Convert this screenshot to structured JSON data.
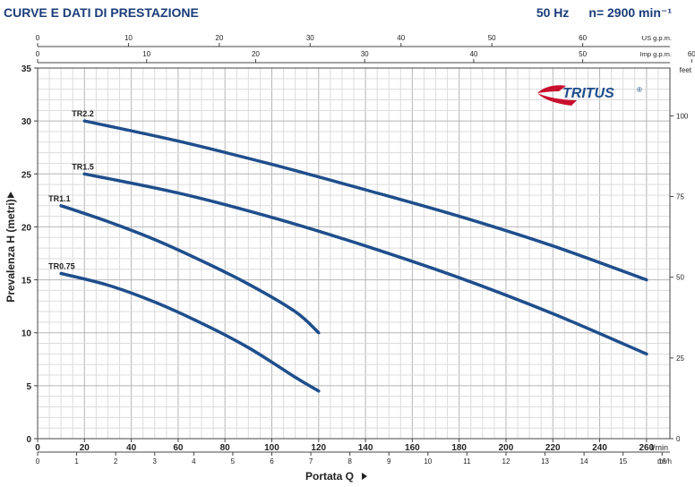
{
  "header": {
    "title": "CURVE E DATI DI PRESTAZIONE",
    "frequency": "50 Hz",
    "speed": "n= 2900 min⁻¹"
  },
  "logo": {
    "text": "TRITUS",
    "mark": "®",
    "color": "#c8102e"
  },
  "colors": {
    "curve": "#1f4e8c",
    "grid_major": "#b5b5b5",
    "grid_minor": "#dcdcdc",
    "text": "#222222"
  },
  "axes": {
    "top_us": {
      "unit": "US g.p.m.",
      "ticks": [
        "0",
        "10",
        "20",
        "30",
        "40",
        "50",
        "60"
      ],
      "range": [
        0,
        69.6
      ]
    },
    "top_imp": {
      "unit": "Imp g.p.m.",
      "ticks": [
        "0",
        "10",
        "20",
        "30",
        "40",
        "50",
        "60"
      ],
      "range": [
        0,
        58
      ]
    },
    "bottom_lmin": {
      "unit": "l/min",
      "ticks": [
        "0",
        "20",
        "40",
        "60",
        "80",
        "100",
        "120",
        "140",
        "160",
        "180",
        "200",
        "220",
        "240",
        "260"
      ],
      "range": [
        0,
        270
      ]
    },
    "bottom_m3h": {
      "unit": "m³/h",
      "ticks": [
        "0",
        "1",
        "2",
        "3",
        "4",
        "5",
        "6",
        "7",
        "8",
        "9",
        "10",
        "11",
        "12",
        "13",
        "14",
        "15",
        "16"
      ],
      "range": [
        0,
        16.2
      ]
    },
    "left_m": {
      "ticks": [
        "0",
        "5",
        "10",
        "15",
        "20",
        "25",
        "30",
        "35"
      ],
      "range": [
        0,
        35
      ]
    },
    "right_feet": {
      "unit": "feet",
      "ticks": [
        "0",
        "25",
        "50",
        "75",
        "100"
      ],
      "range": [
        0,
        114.8
      ]
    },
    "xlabel": "Portata Q",
    "ylabel": "Prevalenza H (metri)"
  },
  "chart_data": {
    "type": "line",
    "xlabel": "Portata Q",
    "ylabel": "Prevalenza H (metri)",
    "x_unit": "l/min",
    "xlim": [
      0,
      270
    ],
    "ylim": [
      0,
      35
    ],
    "grid": true,
    "series": [
      {
        "name": "TR2.2",
        "x": [
          20,
          60,
          100,
          140,
          180,
          220,
          260
        ],
        "y": [
          30.0,
          28.1,
          25.9,
          23.5,
          21.0,
          18.2,
          15.0
        ]
      },
      {
        "name": "TR1.5",
        "x": [
          20,
          60,
          100,
          140,
          180,
          220,
          260
        ],
        "y": [
          25.0,
          23.2,
          20.9,
          18.2,
          15.2,
          11.8,
          8.0
        ]
      },
      {
        "name": "TR1.1",
        "x": [
          10,
          30,
          50,
          70,
          90,
          110,
          120
        ],
        "y": [
          22.0,
          20.5,
          18.8,
          16.8,
          14.6,
          12.0,
          10.0
        ]
      },
      {
        "name": "TR0.75",
        "x": [
          10,
          30,
          50,
          70,
          90,
          110,
          120
        ],
        "y": [
          15.6,
          14.5,
          12.9,
          10.9,
          8.6,
          5.8,
          4.5
        ]
      }
    ]
  }
}
